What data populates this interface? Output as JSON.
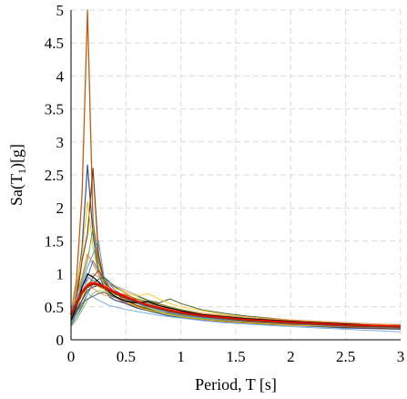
{
  "chart_data": {
    "type": "line",
    "xlabel": "Period, T [s]",
    "ylabel": "Sa(T",
    "ylabel_sub": "1",
    "ylabel_tail": ")[g]",
    "xlim": [
      0,
      3
    ],
    "ylim": [
      0,
      5
    ],
    "x_ticks": [
      "0",
      "0.5",
      "1",
      "1.5",
      "2",
      "2.5",
      "3"
    ],
    "y_ticks": [
      "0",
      "0.5",
      "1",
      "1.5",
      "2",
      "2.5",
      "3",
      "3.5",
      "4",
      "4.5",
      "5"
    ],
    "grid": true,
    "colors": [
      "#4472c4",
      "#ed7d31",
      "#a5a5a5",
      "#ffc000",
      "#5b9bd5",
      "#70ad47",
      "#264478",
      "#9e480e",
      "#636363",
      "#997300",
      "#255e91",
      "#43682b",
      "#698ed0",
      "#f1975a",
      "#b7b7b7",
      "#ffcd33",
      "#7cafdd",
      "#8cc168",
      "#000000",
      "#843c0c"
    ],
    "x": [
      0,
      0.05,
      0.1,
      0.15,
      0.2,
      0.25,
      0.3,
      0.35,
      0.4,
      0.5,
      0.6,
      0.7,
      0.8,
      0.9,
      1.0,
      1.2,
      1.4,
      1.6,
      1.8,
      2.0,
      2.25,
      2.5,
      2.75,
      3.0
    ],
    "series": [
      {
        "color": "#c55a11",
        "width": 1.3,
        "values": [
          0.4,
          0.9,
          2.2,
          5.0,
          1.8,
          1.2,
          0.9,
          0.7,
          0.65,
          0.55,
          0.5,
          0.45,
          0.42,
          0.4,
          0.38,
          0.34,
          0.3,
          0.28,
          0.26,
          0.24,
          0.22,
          0.2,
          0.19,
          0.18
        ]
      },
      {
        "color": "#2f5597",
        "width": 1.2,
        "values": [
          0.35,
          0.7,
          1.4,
          2.65,
          1.6,
          1.0,
          0.8,
          0.65,
          0.6,
          0.55,
          0.48,
          0.44,
          0.4,
          0.36,
          0.34,
          0.3,
          0.27,
          0.25,
          0.23,
          0.22,
          0.2,
          0.18,
          0.17,
          0.16
        ]
      },
      {
        "color": "#843c0c",
        "width": 1.2,
        "values": [
          0.3,
          0.6,
          1.2,
          1.6,
          2.6,
          1.3,
          0.9,
          0.75,
          0.7,
          0.6,
          0.52,
          0.47,
          0.43,
          0.39,
          0.36,
          0.32,
          0.29,
          0.27,
          0.25,
          0.23,
          0.21,
          0.19,
          0.18,
          0.17
        ]
      },
      {
        "color": "#ffc000",
        "width": 1.0,
        "values": [
          0.4,
          0.8,
          1.3,
          2.1,
          1.4,
          1.0,
          0.85,
          0.75,
          0.65,
          0.58,
          0.5,
          0.45,
          0.42,
          0.38,
          0.35,
          0.31,
          0.28,
          0.26,
          0.24,
          0.22,
          0.21,
          0.2,
          0.19,
          0.18
        ]
      },
      {
        "color": "#70ad47",
        "width": 1.0,
        "values": [
          0.35,
          0.55,
          0.9,
          1.2,
          1.7,
          1.1,
          0.85,
          0.7,
          0.65,
          0.6,
          0.55,
          0.48,
          0.43,
          0.39,
          0.36,
          0.32,
          0.3,
          0.28,
          0.26,
          0.24,
          0.22,
          0.21,
          0.2,
          0.19
        ]
      },
      {
        "color": "#5b9bd5",
        "width": 1.0,
        "values": [
          0.3,
          0.5,
          0.85,
          1.1,
          1.3,
          1.5,
          0.95,
          0.8,
          0.7,
          0.62,
          0.55,
          0.5,
          0.45,
          0.41,
          0.37,
          0.33,
          0.3,
          0.28,
          0.26,
          0.24,
          0.22,
          0.21,
          0.2,
          0.19
        ]
      },
      {
        "color": "#ed7d31",
        "width": 1.0,
        "values": [
          0.45,
          0.65,
          0.95,
          1.3,
          1.15,
          1.0,
          0.9,
          0.85,
          0.8,
          0.7,
          0.6,
          0.55,
          0.5,
          0.46,
          0.42,
          0.36,
          0.33,
          0.3,
          0.28,
          0.26,
          0.24,
          0.22,
          0.21,
          0.2
        ]
      },
      {
        "color": "#4472c4",
        "width": 1.0,
        "values": [
          0.25,
          0.4,
          0.7,
          0.95,
          1.2,
          1.05,
          0.95,
          0.85,
          0.75,
          0.65,
          0.58,
          0.52,
          0.48,
          0.44,
          0.4,
          0.36,
          0.33,
          0.3,
          0.28,
          0.25,
          0.23,
          0.21,
          0.2,
          0.19
        ]
      },
      {
        "color": "#a5a5a5",
        "width": 1.0,
        "values": [
          0.3,
          0.45,
          0.75,
          0.9,
          1.0,
          0.95,
          0.9,
          0.85,
          0.82,
          0.75,
          0.68,
          0.6,
          0.55,
          0.5,
          0.45,
          0.4,
          0.35,
          0.32,
          0.3,
          0.28,
          0.26,
          0.24,
          0.22,
          0.21
        ]
      },
      {
        "color": "#9e480e",
        "width": 1.0,
        "values": [
          0.28,
          0.42,
          0.6,
          0.8,
          0.95,
          1.05,
          0.9,
          0.8,
          0.72,
          0.65,
          0.6,
          0.56,
          0.52,
          0.47,
          0.43,
          0.38,
          0.34,
          0.31,
          0.29,
          0.27,
          0.25,
          0.23,
          0.22,
          0.2
        ]
      },
      {
        "color": "#997300",
        "width": 1.0,
        "values": [
          0.35,
          0.5,
          0.7,
          0.85,
          0.9,
          0.88,
          0.8,
          0.75,
          0.72,
          0.68,
          0.62,
          0.58,
          0.54,
          0.5,
          0.46,
          0.4,
          0.36,
          0.33,
          0.31,
          0.29,
          0.27,
          0.25,
          0.23,
          0.22
        ]
      },
      {
        "color": "#43682b",
        "width": 1.0,
        "values": [
          0.22,
          0.35,
          0.5,
          0.7,
          0.85,
          0.92,
          0.95,
          0.88,
          0.8,
          0.72,
          0.66,
          0.6,
          0.56,
          0.62,
          0.55,
          0.45,
          0.4,
          0.36,
          0.33,
          0.3,
          0.28,
          0.26,
          0.24,
          0.22
        ]
      },
      {
        "color": "#264478",
        "width": 1.0,
        "values": [
          0.3,
          0.45,
          0.6,
          0.75,
          0.8,
          0.82,
          0.78,
          0.74,
          0.7,
          0.65,
          0.6,
          0.55,
          0.5,
          0.46,
          0.42,
          0.37,
          0.33,
          0.3,
          0.28,
          0.26,
          0.24,
          0.22,
          0.21,
          0.2
        ]
      },
      {
        "color": "#ffcd33",
        "width": 1.0,
        "values": [
          0.32,
          0.48,
          0.65,
          0.8,
          0.85,
          0.8,
          0.75,
          0.7,
          0.78,
          0.72,
          0.66,
          0.7,
          0.62,
          0.55,
          0.5,
          0.44,
          0.38,
          0.35,
          0.32,
          0.3,
          0.27,
          0.25,
          0.23,
          0.21
        ]
      },
      {
        "color": "#8cc168",
        "width": 1.0,
        "values": [
          0.2,
          0.3,
          0.45,
          0.6,
          0.7,
          0.75,
          0.72,
          0.7,
          0.68,
          0.64,
          0.6,
          0.56,
          0.52,
          0.49,
          0.45,
          0.4,
          0.36,
          0.33,
          0.3,
          0.28,
          0.26,
          0.24,
          0.22,
          0.21
        ]
      },
      {
        "color": "#f1975a",
        "width": 1.0,
        "values": [
          0.4,
          0.55,
          0.7,
          0.8,
          0.78,
          0.72,
          0.68,
          0.66,
          0.64,
          0.62,
          0.58,
          0.54,
          0.5,
          0.46,
          0.43,
          0.4,
          0.37,
          0.35,
          0.32,
          0.3,
          0.28,
          0.26,
          0.24,
          0.23
        ]
      },
      {
        "color": "#7cafdd",
        "width": 1.0,
        "values": [
          0.25,
          0.35,
          0.55,
          0.7,
          0.65,
          0.6,
          0.56,
          0.52,
          0.5,
          0.46,
          0.43,
          0.4,
          0.37,
          0.35,
          0.33,
          0.29,
          0.26,
          0.24,
          0.22,
          0.2,
          0.18,
          0.16,
          0.14,
          0.12
        ]
      },
      {
        "color": "#636363",
        "width": 1.0,
        "values": [
          0.3,
          0.42,
          0.55,
          0.62,
          0.66,
          0.7,
          0.72,
          0.68,
          0.64,
          0.6,
          0.56,
          0.52,
          0.48,
          0.45,
          0.42,
          0.38,
          0.35,
          0.32,
          0.3,
          0.28,
          0.26,
          0.24,
          0.22,
          0.21
        ]
      },
      {
        "color": "#698ed0",
        "width": 1.0,
        "values": [
          0.45,
          0.62,
          0.8,
          0.95,
          0.9,
          0.85,
          0.8,
          0.75,
          0.7,
          0.62,
          0.55,
          0.5,
          0.46,
          0.42,
          0.39,
          0.34,
          0.31,
          0.28,
          0.26,
          0.24,
          0.22,
          0.2,
          0.19,
          0.18
        ]
      },
      {
        "color": "#000000",
        "width": 1.2,
        "values": [
          0.3,
          0.5,
          0.8,
          1.0,
          0.95,
          0.88,
          0.8,
          0.72,
          0.66,
          0.58,
          0.56,
          0.58,
          0.52,
          0.48,
          0.44,
          0.38,
          0.35,
          0.32,
          0.3,
          0.28,
          0.26,
          0.24,
          0.22,
          0.2
        ]
      },
      {
        "color": "#ff0000",
        "width": 2.6,
        "values": [
          0.38,
          0.55,
          0.72,
          0.82,
          0.86,
          0.84,
          0.8,
          0.76,
          0.72,
          0.65,
          0.58,
          0.52,
          0.48,
          0.44,
          0.41,
          0.36,
          0.33,
          0.3,
          0.28,
          0.26,
          0.24,
          0.22,
          0.21,
          0.2
        ]
      },
      {
        "color": "#843c0c",
        "width": 1.4,
        "values": [
          0.36,
          0.53,
          0.7,
          0.8,
          0.84,
          0.82,
          0.78,
          0.74,
          0.7,
          0.63,
          0.57,
          0.51,
          0.47,
          0.43,
          0.4,
          0.35,
          0.32,
          0.29,
          0.27,
          0.25,
          0.23,
          0.21,
          0.2,
          0.19
        ]
      }
    ]
  }
}
